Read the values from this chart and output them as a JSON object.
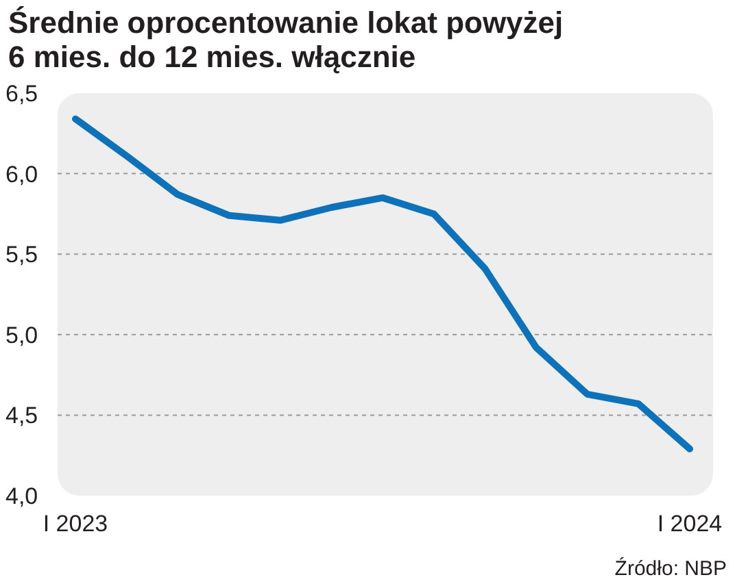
{
  "chart_data": {
    "type": "line",
    "title": "Średnie oprocentowanie lokat powyżej 6 mies. do 12 mies. włącznie",
    "categories": [
      "I 2023",
      null,
      null,
      null,
      null,
      null,
      null,
      null,
      null,
      null,
      null,
      null,
      "I 2024"
    ],
    "series": [
      {
        "color": "#0d72b9",
        "values": [
          6.34,
          6.11,
          5.87,
          5.74,
          5.71,
          5.79,
          5.85,
          5.75,
          5.41,
          4.92,
          4.63,
          4.57,
          4.29
        ]
      }
    ],
    "ylim": [
      4.0,
      6.5
    ],
    "yticks": [
      {
        "value": 4.0,
        "label": "4,0"
      },
      {
        "value": 4.5,
        "label": "4,5"
      },
      {
        "value": 5.0,
        "label": "5,0"
      },
      {
        "value": 5.5,
        "label": "5,5"
      },
      {
        "value": 6.0,
        "label": "6,0"
      },
      {
        "value": 6.5,
        "label": "6,5"
      }
    ],
    "grid": "y",
    "line_style": "solid",
    "marker": "none",
    "annotations": [
      "Źródło: NBP"
    ]
  }
}
